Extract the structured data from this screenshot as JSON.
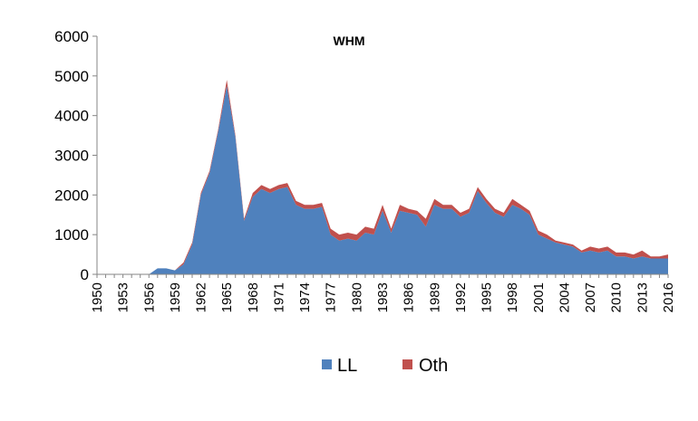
{
  "chart_data": {
    "type": "area",
    "stacked": true,
    "title": "WHM",
    "xlabel": "",
    "ylabel": "",
    "ylim": [
      0,
      6000
    ],
    "yticks": [
      0,
      1000,
      2000,
      3000,
      4000,
      5000,
      6000
    ],
    "xticks": [
      1950,
      1953,
      1956,
      1959,
      1962,
      1965,
      1968,
      1971,
      1974,
      1977,
      1980,
      1983,
      1986,
      1989,
      1992,
      1995,
      1998,
      2001,
      2004,
      2007,
      2010,
      2013,
      2016
    ],
    "grid": false,
    "legend_position": "bottom",
    "x": [
      1950,
      1951,
      1952,
      1953,
      1954,
      1955,
      1956,
      1957,
      1958,
      1959,
      1960,
      1961,
      1962,
      1963,
      1964,
      1965,
      1966,
      1967,
      1968,
      1969,
      1970,
      1971,
      1972,
      1973,
      1974,
      1975,
      1976,
      1977,
      1978,
      1979,
      1980,
      1981,
      1982,
      1983,
      1984,
      1985,
      1986,
      1987,
      1988,
      1989,
      1990,
      1991,
      1992,
      1993,
      1994,
      1995,
      1996,
      1997,
      1998,
      1999,
      2000,
      2001,
      2002,
      2003,
      2004,
      2005,
      2006,
      2007,
      2008,
      2009,
      2010,
      2011,
      2012,
      2013,
      2014,
      2015,
      2016
    ],
    "series": [
      {
        "name": "LL",
        "color": "#4F81BD",
        "values": [
          0,
          0,
          0,
          0,
          0,
          0,
          0,
          150,
          150,
          100,
          250,
          750,
          2000,
          2550,
          3600,
          4750,
          3450,
          1350,
          1950,
          2150,
          2050,
          2150,
          2200,
          1750,
          1650,
          1650,
          1700,
          1000,
          850,
          900,
          850,
          1050,
          1000,
          1600,
          1050,
          1600,
          1550,
          1500,
          1200,
          1750,
          1650,
          1650,
          1450,
          1550,
          2100,
          1800,
          1550,
          1450,
          1750,
          1650,
          1500,
          1000,
          900,
          800,
          750,
          700,
          550,
          600,
          550,
          600,
          450,
          450,
          400,
          450,
          400,
          400,
          400
        ]
      },
      {
        "name": "Oth",
        "color": "#C0504D",
        "values": [
          0,
          0,
          0,
          0,
          0,
          0,
          0,
          0,
          0,
          0,
          50,
          50,
          50,
          50,
          50,
          150,
          50,
          50,
          100,
          100,
          100,
          100,
          100,
          100,
          100,
          100,
          100,
          150,
          150,
          150,
          150,
          150,
          150,
          150,
          100,
          150,
          100,
          100,
          200,
          150,
          100,
          100,
          100,
          100,
          100,
          100,
          100,
          100,
          150,
          100,
          100,
          100,
          100,
          50,
          50,
          50,
          50,
          100,
          100,
          100,
          100,
          100,
          100,
          150,
          50,
          50,
          100
        ]
      }
    ]
  }
}
